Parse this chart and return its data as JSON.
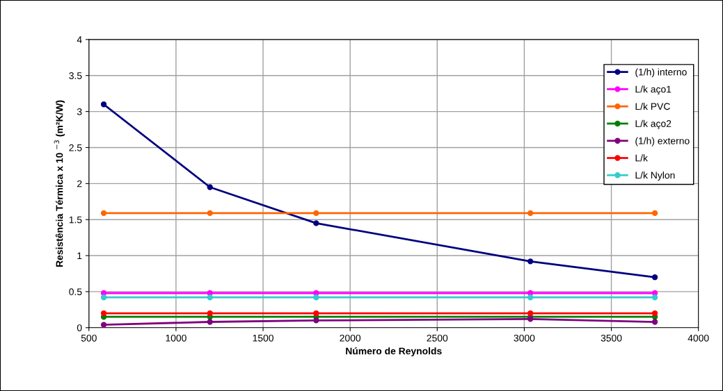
{
  "chart_data": {
    "type": "line",
    "xlabel": "Número de Reynolds",
    "ylabel": "Resistência Térmica x 10 $^{−3}$ (m²K/W)",
    "xlim": [
      500,
      4000
    ],
    "xticks": [
      500,
      1000,
      1500,
      2000,
      2500,
      3000,
      3500,
      4000
    ],
    "ylim": [
      0,
      4
    ],
    "yticks": [
      0,
      0.5,
      1,
      1.5,
      2,
      2.5,
      3,
      3.5,
      4
    ],
    "grid": true,
    "legend": "top right",
    "marker": "circle",
    "line_style": "solid",
    "series": [
      {
        "name": "(1/h) interno",
        "color": "#000080",
        "x": [
          585,
          1195,
          1805,
          3035,
          3750
        ],
        "values": [
          3.1,
          1.95,
          1.45,
          0.92,
          0.7
        ]
      },
      {
        "name": "L/k aço1",
        "color": "#ff00ff",
        "x": [
          585,
          1195,
          1805,
          3035,
          3750
        ],
        "values": [
          0.48,
          0.48,
          0.48,
          0.48,
          0.48
        ]
      },
      {
        "name": "L/k PVC",
        "color": "#ff6600",
        "x": [
          585,
          1195,
          1805,
          3035,
          3750
        ],
        "values": [
          1.59,
          1.59,
          1.59,
          1.59,
          1.59
        ]
      },
      {
        "name": "L/k aço2",
        "color": "#008000",
        "x": [
          585,
          1195,
          1805,
          3035,
          3750
        ],
        "values": [
          0.15,
          0.15,
          0.15,
          0.15,
          0.15
        ]
      },
      {
        "name": "(1/h) externo",
        "color": "#800080",
        "x": [
          585,
          1195,
          1805,
          3035,
          3750
        ],
        "values": [
          0.04,
          0.08,
          0.1,
          0.12,
          0.08
        ]
      },
      {
        "name": "L/k",
        "color": "#ff0000",
        "x": [
          585,
          1195,
          1805,
          3035,
          3750
        ],
        "values": [
          0.2,
          0.2,
          0.2,
          0.2,
          0.2
        ]
      },
      {
        "name": "L/k Nylon",
        "color": "#33cccc",
        "x": [
          585,
          1195,
          1805,
          3035,
          3750
        ],
        "values": [
          0.42,
          0.42,
          0.42,
          0.42,
          0.42
        ]
      }
    ]
  }
}
